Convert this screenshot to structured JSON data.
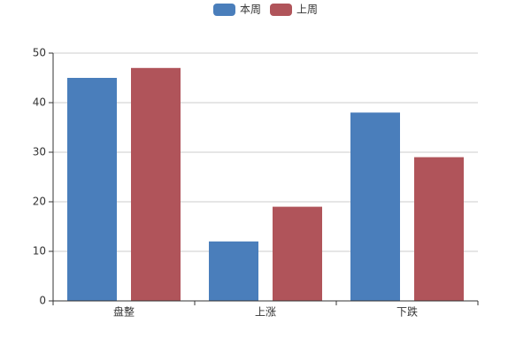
{
  "chart_data": {
    "type": "bar",
    "categories": [
      "盘整",
      "上涨",
      "下跌"
    ],
    "series": [
      {
        "name": "本周",
        "color": "#4a7ebb",
        "values": [
          45,
          12,
          38
        ]
      },
      {
        "name": "上周",
        "color": "#b0545a",
        "values": [
          47,
          19,
          29
        ]
      }
    ],
    "ylim": [
      0,
      50
    ],
    "yticks": [
      0,
      10,
      20,
      30,
      40,
      50
    ],
    "grid": true,
    "legend": "top"
  }
}
